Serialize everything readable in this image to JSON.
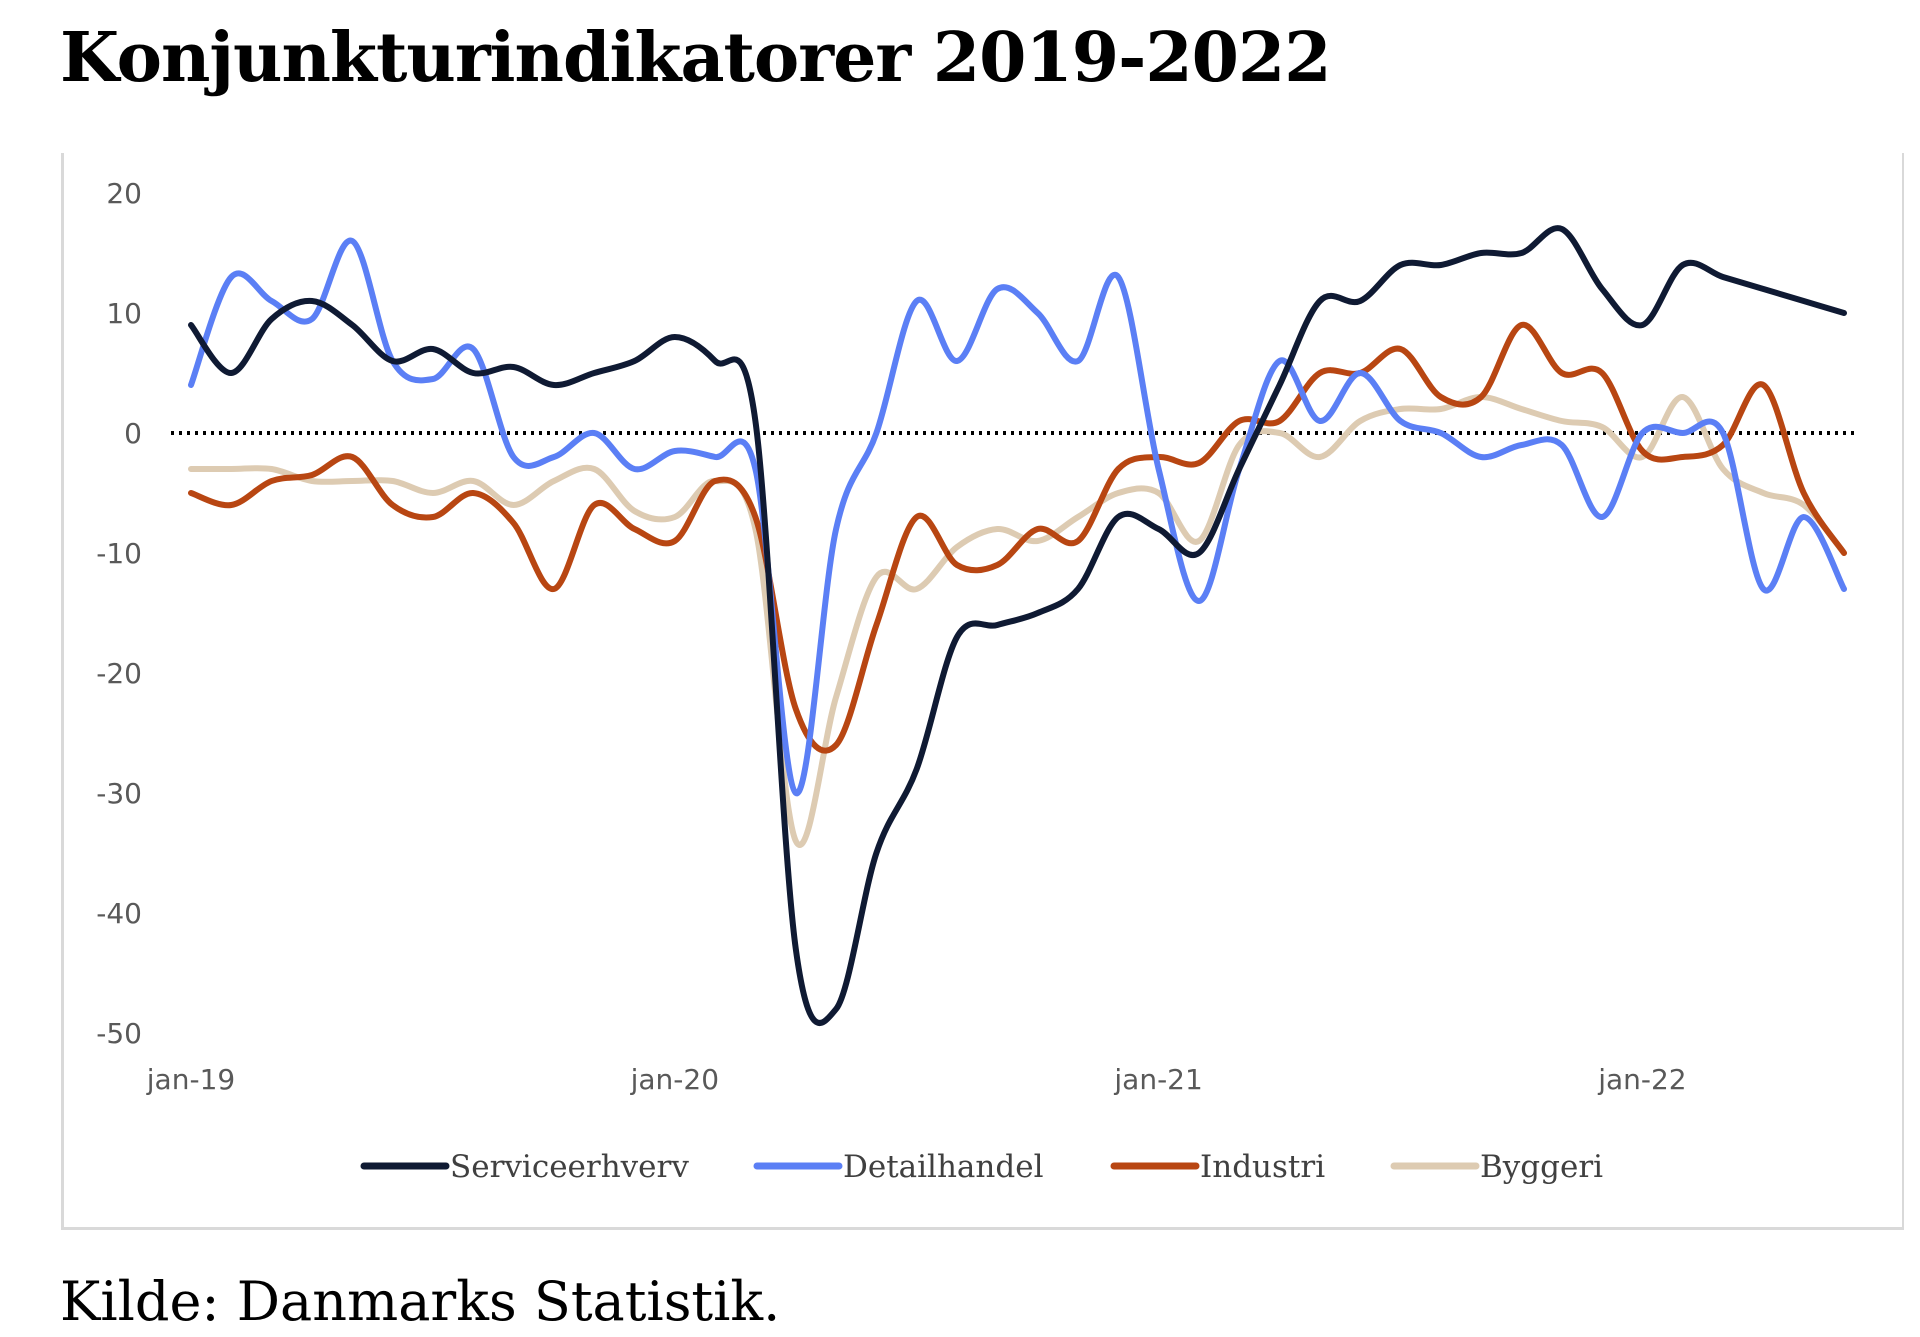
{
  "page": {
    "title": "Konjunkturindikatorer 2019-2022",
    "source": "Kilde: Danmarks Statistik."
  },
  "chart_data": {
    "type": "line",
    "title": "Konjunkturindikatorer 2019-2022",
    "xlabel": "",
    "ylabel": "",
    "ylim": [
      -50,
      20
    ],
    "y_ticks": [
      20,
      10,
      0,
      -10,
      -20,
      -30,
      -40,
      -50
    ],
    "x_tick_labels": [
      "jan-19",
      "jan-20",
      "jan-21",
      "jan-22"
    ],
    "x_tick_months": [
      0,
      12,
      24,
      36
    ],
    "x_range_months": [
      0,
      41
    ],
    "zero_line": "dotted",
    "grid": false,
    "legend_position": "bottom",
    "series": [
      {
        "name": "Serviceerhverv",
        "color": "#0f1a33",
        "values": [
          9,
          5,
          9.5,
          11,
          9,
          6,
          7,
          5,
          5.5,
          4,
          5,
          6,
          8,
          6,
          1,
          -43,
          -48,
          -35,
          -28,
          -17,
          -16,
          -15,
          -13,
          -7,
          -8,
          -10,
          -3,
          4,
          11,
          11,
          14,
          14,
          15,
          15,
          17,
          12,
          9,
          14,
          13,
          12,
          11,
          10
        ]
      },
      {
        "name": "Detailhandel",
        "color": "#5b7ff5",
        "values": [
          4,
          13,
          11,
          9.5,
          16,
          6,
          4.5,
          7,
          -2,
          -2,
          0,
          -3,
          -1.5,
          -2,
          -3,
          -30,
          -8,
          0,
          11,
          6,
          12,
          10,
          6,
          13,
          -3,
          -14,
          -3,
          6,
          1,
          5,
          1,
          0,
          -2,
          -1,
          -1,
          -7,
          0,
          0,
          0,
          -13,
          -7,
          -13
        ]
      },
      {
        "name": "Industri",
        "color": "#b84612",
        "values": [
          -5,
          -6,
          -4,
          -3.5,
          -2,
          -6,
          -7,
          -5,
          -7.5,
          -13,
          -6,
          -8,
          -9,
          -4,
          -7,
          -23,
          -26,
          -16,
          -7,
          -11,
          -11,
          -8,
          -9,
          -3,
          -2,
          -2.5,
          1,
          1,
          5,
          5,
          7,
          3,
          3,
          9,
          5,
          5,
          -1.5,
          -2,
          -1,
          4,
          -5,
          -10
        ]
      },
      {
        "name": "Byggeri",
        "color": "#ddcbb2",
        "values": [
          -3,
          -3,
          -3,
          -4,
          -4,
          -4,
          -5,
          -4,
          -6,
          -4,
          -3,
          -6.5,
          -7,
          -4,
          -8,
          -34,
          -22,
          -12,
          -13,
          -9.5,
          -8,
          -9,
          -7,
          -5,
          -5,
          -9,
          -1,
          0,
          -2,
          1,
          2,
          2,
          3,
          2,
          1,
          0.5,
          -2,
          3,
          -3,
          -5,
          -6,
          -10
        ]
      }
    ]
  }
}
